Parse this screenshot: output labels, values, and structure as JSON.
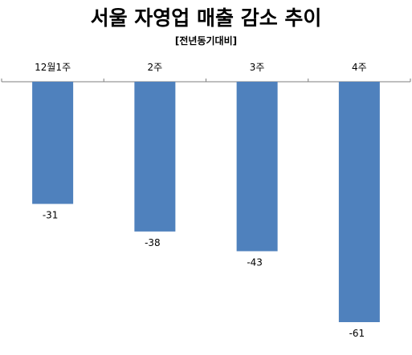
{
  "chart_data": {
    "type": "bar",
    "title": "서울 자영업 매출 감소 추이",
    "subtitle": "[전년동기대비]",
    "categories": [
      "12월1주",
      "2주",
      "3주",
      "4주"
    ],
    "values": [
      -31,
      -38,
      -43,
      -61
    ],
    "ylim": [
      -61,
      0
    ],
    "bar_color": "#4F81BD",
    "axis_color": "#7F7F7F",
    "gridlines": false,
    "legend": "none"
  }
}
